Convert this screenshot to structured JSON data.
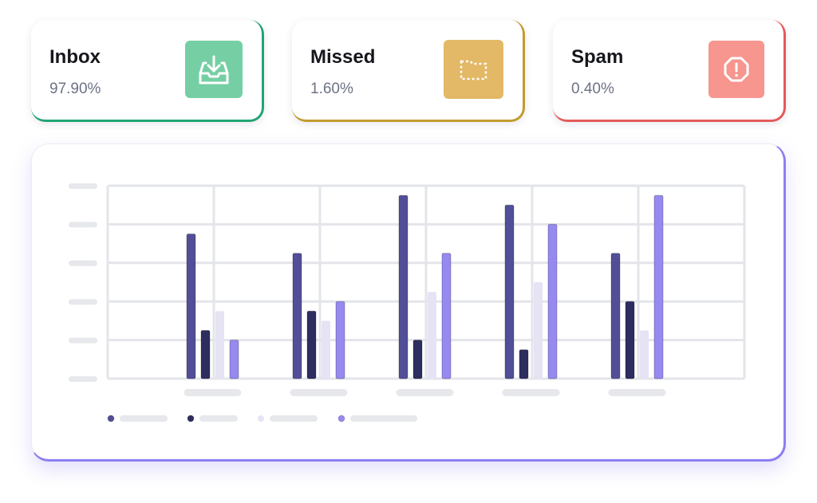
{
  "cards": [
    {
      "id": "inbox",
      "title": "Inbox",
      "value": "97.90%",
      "icon": "inbox-download-icon",
      "accent": "#22a473",
      "icon_bg": "#76cfa4"
    },
    {
      "id": "missed",
      "title": "Missed",
      "value": "1.60%",
      "icon": "dotted-folder-icon",
      "accent": "#c29b2f",
      "icon_bg": "#e3b866"
    },
    {
      "id": "spam",
      "title": "Spam",
      "value": "0.40%",
      "icon": "alert-octagon-icon",
      "accent": "#e45a5a",
      "icon_bg": "#f7958f"
    }
  ],
  "chart_data": {
    "type": "bar",
    "title": "",
    "xlabel": "",
    "ylabel": "",
    "ylim": [
      0,
      5
    ],
    "grid": true,
    "legend_position": "bottom-left",
    "categories": [
      "",
      "",
      "",
      "",
      ""
    ],
    "series": [
      {
        "color": "#524f98",
        "values": [
          3.75,
          3.25,
          4.75,
          4.5,
          3.25
        ]
      },
      {
        "color": "#2e2d5f",
        "values": [
          1.25,
          1.75,
          1.0,
          0.75,
          2.0
        ]
      },
      {
        "color": "#e6e3f4",
        "values": [
          1.75,
          1.5,
          2.25,
          2.5,
          1.25
        ]
      },
      {
        "color": "#9689f0",
        "values": [
          1.0,
          2.0,
          3.25,
          4.0,
          4.75
        ]
      }
    ]
  }
}
